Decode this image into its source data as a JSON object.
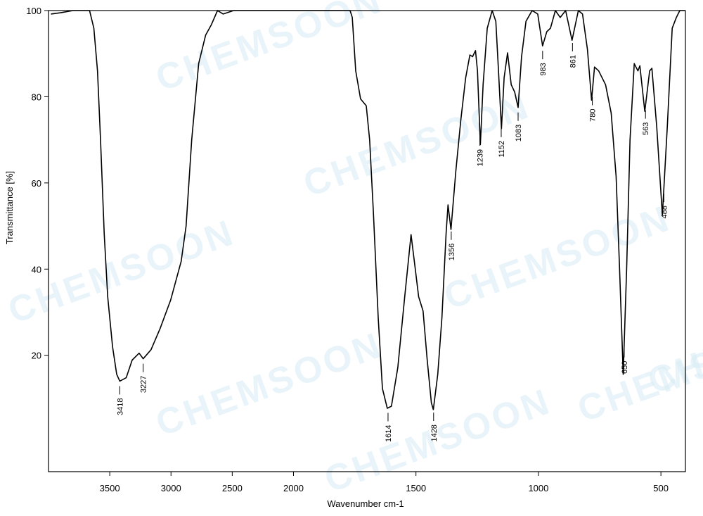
{
  "chart_data": {
    "type": "line",
    "x_label": "Wavenumber cm-1",
    "y_label": "Transmittance [%]",
    "watermark": "CHEMSOON",
    "xlim": [
      4000,
      400
    ],
    "x_scale_break": 2000,
    "xticks": [
      3500,
      3000,
      2500,
      2000,
      1500,
      1000,
      500
    ],
    "ylim": [
      -7,
      100
    ],
    "yticks": [
      20,
      40,
      60,
      80,
      100
    ],
    "peaks": [
      3418,
      3227,
      1614,
      1428,
      1356,
      1239,
      1152,
      1083,
      983,
      861,
      780,
      650,
      563,
      488
    ],
    "series": [
      {
        "color": "#000000",
        "x": [
          3980,
          3900,
          3800,
          3700,
          3665,
          3630,
          3600,
          3575,
          3545,
          3517,
          3477,
          3443,
          3418,
          3366,
          3317,
          3260,
          3227,
          3163,
          3089,
          3003,
          2917,
          2877,
          2831,
          2774,
          2717,
          2671,
          2620,
          2574,
          2489,
          2089,
          1769,
          1760,
          1746,
          1726,
          1703,
          1689,
          1674,
          1654,
          1637,
          1617,
          1600,
          1574,
          1546,
          1520,
          1503,
          1489,
          1471,
          1454,
          1437,
          1429,
          1411,
          1394,
          1377,
          1369,
          1357,
          1337,
          1317,
          1297,
          1280,
          1269,
          1257,
          1249,
          1237,
          1226,
          1209,
          1189,
          1174,
          1163,
          1151,
          1140,
          1126,
          1111,
          1097,
          1083,
          1069,
          1051,
          1026,
          1003,
          983,
          966,
          951,
          931,
          911,
          889,
          863,
          837,
          820,
          800,
          783,
          771,
          754,
          726,
          703,
          683,
          669,
          654,
          640,
          626,
          609,
          594,
          586,
          566,
          546,
          537,
          517,
          494,
          474,
          454,
          437,
          423,
          403
        ],
        "values": [
          99.2,
          99.5,
          100,
          100,
          100,
          95.9,
          86,
          70,
          48,
          33.6,
          22,
          15.6,
          14,
          14.8,
          18.9,
          20.5,
          19.2,
          21.3,
          26.2,
          32.8,
          41.8,
          50,
          70,
          87.7,
          94.3,
          96.7,
          100,
          99.2,
          100,
          100,
          100,
          98.4,
          86,
          79.5,
          77.9,
          70,
          53.3,
          28.7,
          12.3,
          7.7,
          8.2,
          17.2,
          33.6,
          48,
          40.2,
          33.6,
          30.3,
          18.9,
          9,
          7.4,
          15.6,
          28.7,
          48.4,
          54.9,
          49.2,
          62.9,
          74.6,
          84.4,
          89.7,
          89.3,
          90.7,
          86,
          68.9,
          82.8,
          95.9,
          100,
          97.5,
          86,
          72.6,
          84.4,
          90.2,
          82.8,
          81.1,
          77.5,
          89.3,
          97.5,
          100,
          99.2,
          91.8,
          95.1,
          95.9,
          100,
          98.4,
          100,
          93.1,
          100,
          99.2,
          91,
          79.2,
          86.9,
          86,
          82.8,
          76.2,
          61.5,
          40.2,
          15.6,
          40.2,
          70,
          87.7,
          86,
          87.2,
          76.6,
          86,
          86.6,
          73,
          52.5,
          73,
          95.9,
          98.4,
          100,
          100
        ]
      }
    ]
  }
}
